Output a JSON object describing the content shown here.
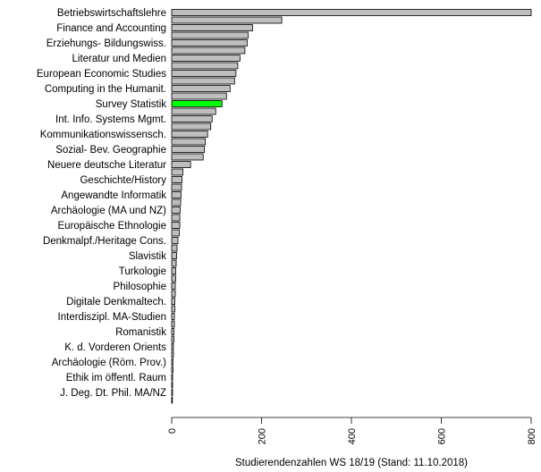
{
  "chart_data": {
    "type": "bar",
    "orientation": "horizontal",
    "xlabel": "Studierendenzahlen WS 18/19 (Stand: 11.10.2018)",
    "ylabel": "",
    "title": "",
    "xlim": [
      0,
      800
    ],
    "xticks": [
      "0",
      "200",
      "400",
      "600",
      "800"
    ],
    "grid": false,
    "colors": {
      "bar": "#bebebe",
      "highlight": "#00ff00",
      "edge": "#000000"
    },
    "highlight_category": "Survey Statistik",
    "categories": [
      "Betriebswirtschaftslehre",
      "",
      "Finance and Accounting",
      "",
      "Erziehungs- Bildungswiss.",
      "",
      "Literatur und Medien",
      "",
      "European Economic Studies",
      "",
      "Computing in the Humanit.",
      "",
      "Survey Statistik",
      "",
      "Int. Info. Systems Mgmt.",
      "",
      "Kommunikationswissensch.",
      "",
      "Sozial- Bev. Geographie",
      "",
      "Neuere deutsche Literatur",
      "",
      "Geschichte/History",
      "",
      "Angewandte Informatik",
      "",
      "Archäologie (MA und NZ)",
      "",
      "Europäische Ethnologie",
      "",
      "Denkmalpf./Heritage Cons.",
      "",
      "Slavistik",
      "",
      "Turkologie",
      "",
      "Philosophie",
      "",
      "Digitale Denkmaltech.",
      "",
      "Interdiszipl. MA-Studien",
      "",
      "Romanistik",
      "",
      "K. d. Vorderen Orients",
      "",
      "Archäologie (Röm. Prov.)",
      "",
      "Ethik im öffentl. Raum",
      "",
      "J. Deg. Dt. Phil. MA/NZ",
      ""
    ],
    "values": [
      800,
      245,
      180,
      170,
      168,
      163,
      152,
      147,
      143,
      140,
      130,
      122,
      112,
      98,
      90,
      87,
      80,
      75,
      73,
      70,
      42,
      25,
      23,
      22,
      21,
      20,
      19,
      18,
      18,
      17,
      14,
      12,
      11,
      10,
      9,
      9,
      8,
      8,
      7,
      7,
      6,
      6,
      5,
      5,
      4,
      4,
      3,
      3,
      2,
      2,
      2,
      1
    ]
  }
}
